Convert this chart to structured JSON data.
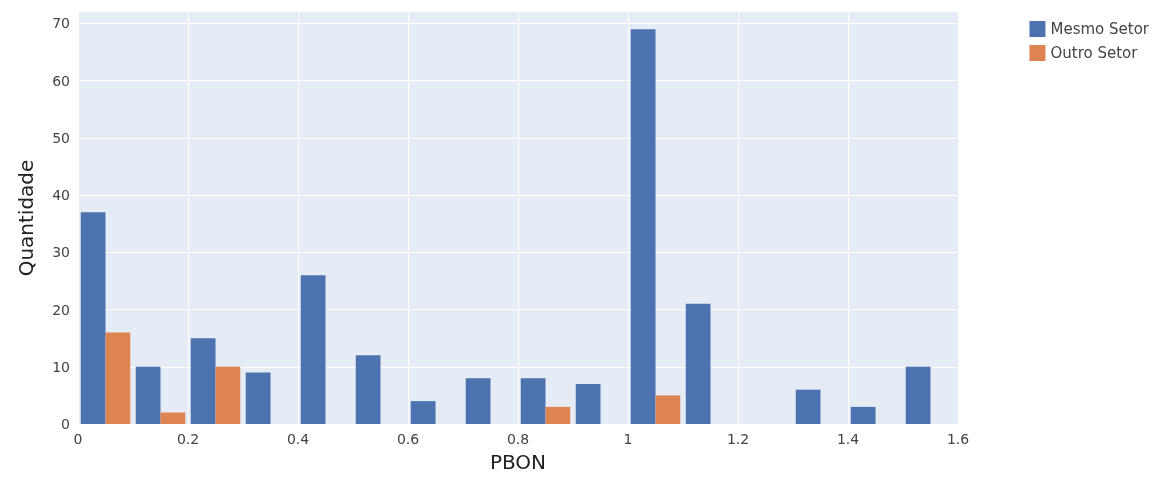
{
  "chart_data": {
    "type": "histogram",
    "xlabel": "PBON",
    "ylabel": "Quantidade",
    "bins": [
      0,
      0.1,
      0.2,
      0.3,
      0.4,
      0.5,
      0.6,
      0.7,
      0.8,
      0.9,
      1.0,
      1.1,
      1.2,
      1.3,
      1.4,
      1.5,
      1.6
    ],
    "series": [
      {
        "name": "Mesmo Setor",
        "color": "#4c72b0",
        "values": [
          37,
          10,
          15,
          9,
          26,
          12,
          4,
          8,
          8,
          7,
          69,
          21,
          0,
          6,
          3,
          10
        ]
      },
      {
        "name": "Outro Setor",
        "color": "#dd8452",
        "values": [
          16,
          2,
          10,
          0,
          0,
          0,
          0,
          0,
          3,
          0,
          5,
          0,
          0,
          0,
          0,
          0
        ]
      }
    ],
    "xlim": [
      0,
      1.6
    ],
    "xticks": [
      0,
      0.2,
      0.4,
      0.6,
      0.8,
      1,
      1.2,
      1.4,
      1.6
    ],
    "ylim": [
      0,
      72
    ],
    "yticks": [
      0,
      10,
      20,
      30,
      40,
      50,
      60,
      70
    ],
    "grid": true,
    "legend": "top right"
  }
}
